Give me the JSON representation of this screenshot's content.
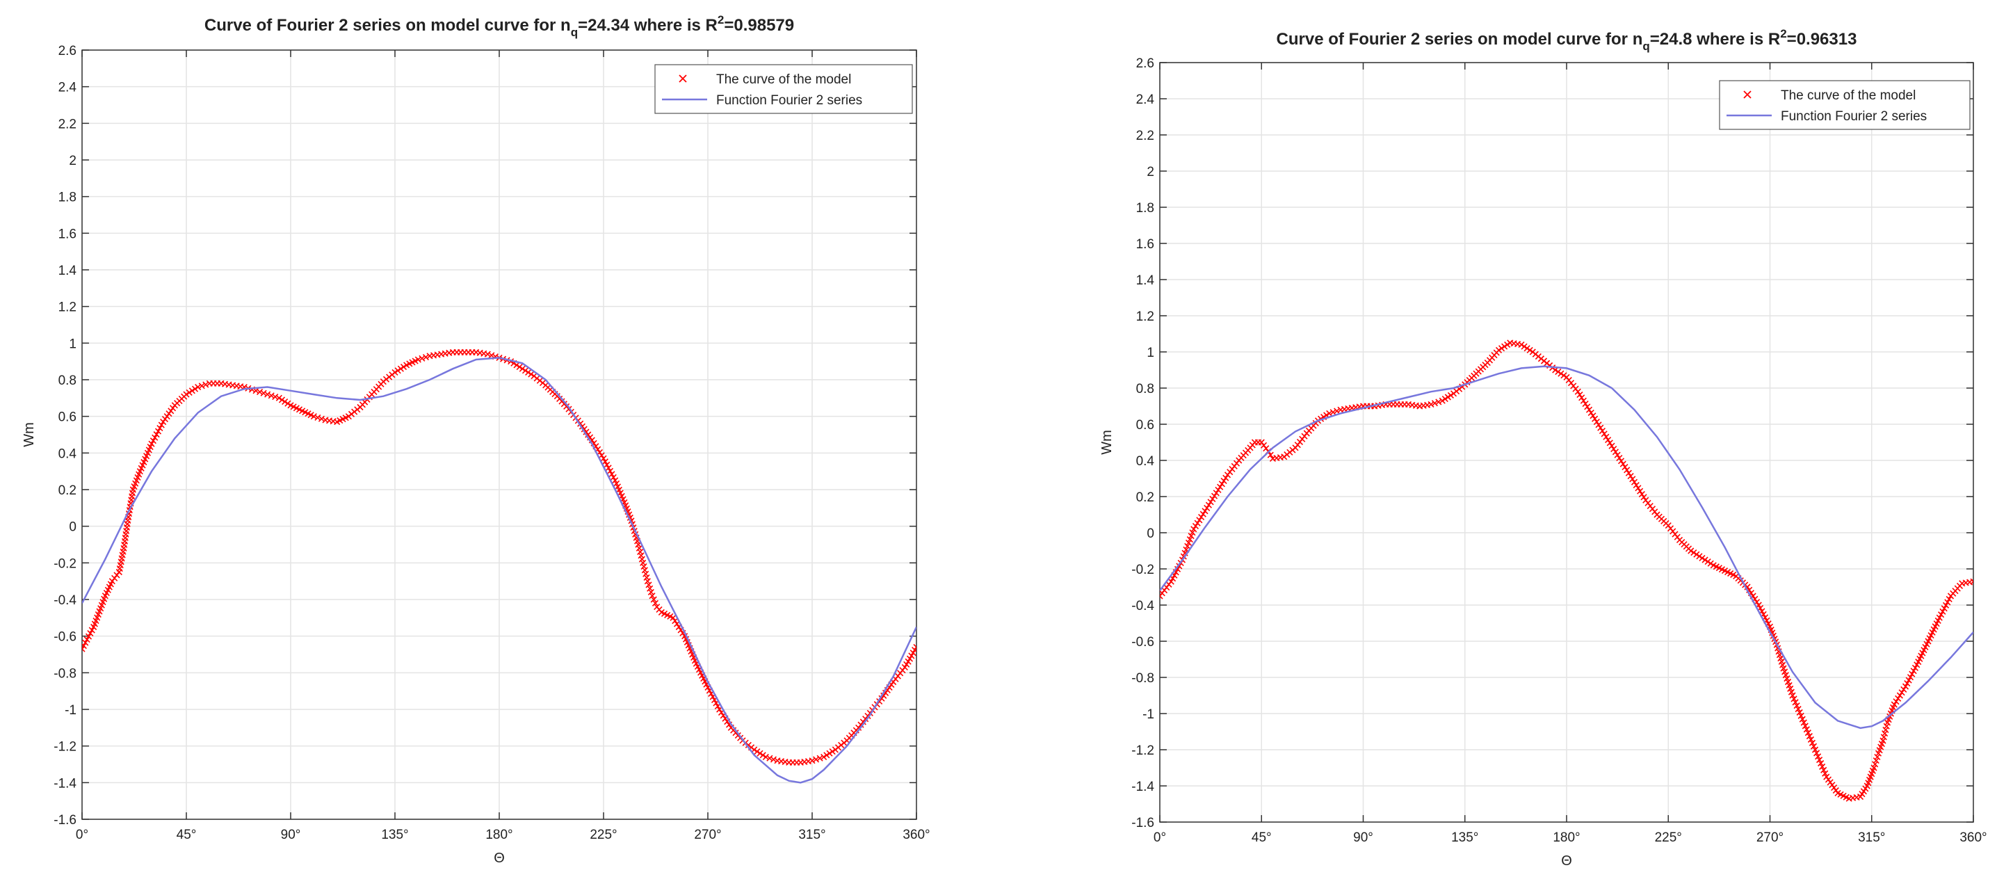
{
  "chart_data": [
    {
      "type": "line",
      "title": "Curve of Fourier 2 series on model curve for n",
      "title_sub": "q",
      "title_mid": "=24.34 where is R",
      "title_sup": "2",
      "title_end": "=0.98579",
      "xlabel": "Θ",
      "ylabel": "Wm",
      "xlim": [
        0,
        360
      ],
      "ylim": [
        -1.6,
        2.6
      ],
      "xticks": [
        0,
        45,
        90,
        135,
        180,
        225,
        270,
        315,
        360
      ],
      "xtick_labels": [
        "0°",
        "45°",
        "90°",
        "135°",
        "180°",
        "225°",
        "270°",
        "315°",
        "360°"
      ],
      "yticks": [
        -1.6,
        -1.4,
        -1.2,
        -1,
        -0.8,
        -0.6,
        -0.4,
        -0.2,
        0,
        0.2,
        0.4,
        0.6,
        0.8,
        1,
        1.2,
        1.4,
        1.6,
        1.8,
        2,
        2.2,
        2.4,
        2.6
      ],
      "ytick_labels": [
        "-1.6",
        "-1.4",
        "-1.2",
        "-1",
        "-0.8",
        "-0.6",
        "-0.4",
        "-0.2",
        "0",
        "0.2",
        "0.4",
        "0.6",
        "0.8",
        "1",
        "1.2",
        "1.4",
        "1.6",
        "1.8",
        "2",
        "2.2",
        "2.4",
        "2.6"
      ],
      "grid": true,
      "legend_position": "top-right",
      "colors": {
        "model": "#ff0000",
        "fourier": "#7777dd"
      },
      "series": [
        {
          "name": "The curve of the model",
          "marker": "x",
          "x": [
            0,
            5,
            10,
            13,
            16,
            18,
            20,
            22,
            25,
            30,
            35,
            40,
            45,
            50,
            55,
            60,
            65,
            70,
            75,
            80,
            85,
            90,
            95,
            100,
            105,
            110,
            115,
            120,
            125,
            130,
            135,
            140,
            145,
            150,
            155,
            160,
            165,
            170,
            175,
            180,
            185,
            190,
            195,
            200,
            205,
            210,
            215,
            220,
            225,
            230,
            234,
            237,
            240,
            242,
            244,
            246,
            248,
            250,
            255,
            260,
            265,
            270,
            275,
            280,
            285,
            290,
            295,
            300,
            305,
            310,
            315,
            320,
            325,
            330,
            335,
            340,
            345,
            350,
            355,
            360
          ],
          "y": [
            -0.67,
            -0.55,
            -0.38,
            -0.3,
            -0.25,
            -0.12,
            0.05,
            0.2,
            0.3,
            0.45,
            0.57,
            0.66,
            0.72,
            0.76,
            0.78,
            0.78,
            0.77,
            0.76,
            0.74,
            0.72,
            0.7,
            0.66,
            0.63,
            0.6,
            0.58,
            0.57,
            0.6,
            0.65,
            0.72,
            0.79,
            0.84,
            0.88,
            0.91,
            0.93,
            0.94,
            0.95,
            0.95,
            0.95,
            0.94,
            0.92,
            0.9,
            0.86,
            0.82,
            0.77,
            0.71,
            0.64,
            0.56,
            0.47,
            0.37,
            0.25,
            0.13,
            0.03,
            -0.1,
            -0.2,
            -0.3,
            -0.38,
            -0.44,
            -0.47,
            -0.5,
            -0.6,
            -0.75,
            -0.88,
            -1.0,
            -1.1,
            -1.17,
            -1.22,
            -1.26,
            -1.28,
            -1.29,
            -1.29,
            -1.28,
            -1.26,
            -1.22,
            -1.17,
            -1.1,
            -1.02,
            -0.94,
            -0.85,
            -0.77,
            -0.66
          ]
        },
        {
          "name": "Function Fourier 2 series",
          "marker": "line",
          "x": [
            0,
            10,
            20,
            30,
            40,
            50,
            60,
            70,
            80,
            90,
            100,
            110,
            120,
            130,
            140,
            150,
            160,
            170,
            180,
            190,
            200,
            210,
            220,
            230,
            240,
            250,
            260,
            270,
            280,
            290,
            300,
            305,
            310,
            315,
            320,
            330,
            340,
            350,
            360
          ],
          "y": [
            -0.42,
            -0.18,
            0.08,
            0.3,
            0.48,
            0.62,
            0.71,
            0.75,
            0.76,
            0.74,
            0.72,
            0.7,
            0.69,
            0.71,
            0.75,
            0.8,
            0.86,
            0.91,
            0.92,
            0.89,
            0.8,
            0.65,
            0.45,
            0.2,
            -0.06,
            -0.33,
            -0.58,
            -0.85,
            -1.08,
            -1.25,
            -1.36,
            -1.39,
            -1.4,
            -1.38,
            -1.33,
            -1.2,
            -1.03,
            -0.82,
            -0.55
          ]
        }
      ]
    },
    {
      "type": "line",
      "title": "Curve of Fourier 2 series on model curve for n",
      "title_sub": "q",
      "title_mid": "=24.8 where is R",
      "title_sup": "2",
      "title_end": "=0.96313",
      "xlabel": "Θ",
      "ylabel": "Wm",
      "xlim": [
        0,
        360
      ],
      "ylim": [
        -1.6,
        2.6
      ],
      "xticks": [
        0,
        45,
        90,
        135,
        180,
        225,
        270,
        315,
        360
      ],
      "xtick_labels": [
        "0°",
        "45°",
        "90°",
        "135°",
        "180°",
        "225°",
        "270°",
        "315°",
        "360°"
      ],
      "yticks": [
        -1.6,
        -1.4,
        -1.2,
        -1,
        -0.8,
        -0.6,
        -0.4,
        -0.2,
        0,
        0.2,
        0.4,
        0.6,
        0.8,
        1,
        1.2,
        1.4,
        1.6,
        1.8,
        2,
        2.2,
        2.4,
        2.6
      ],
      "ytick_labels": [
        "-1.6",
        "-1.4",
        "-1.2",
        "-1",
        "-0.8",
        "-0.6",
        "-0.4",
        "-0.2",
        "0",
        "0.2",
        "0.4",
        "0.6",
        "0.8",
        "1",
        "1.2",
        "1.4",
        "1.6",
        "1.8",
        "2",
        "2.2",
        "2.4",
        "2.6"
      ],
      "grid": true,
      "legend_position": "top-right",
      "colors": {
        "model": "#ff0000",
        "fourier": "#7777dd"
      },
      "series": [
        {
          "name": "The curve of the model",
          "marker": "x",
          "x": [
            0,
            5,
            10,
            15,
            20,
            25,
            30,
            35,
            40,
            42,
            45,
            48,
            50,
            55,
            60,
            65,
            70,
            75,
            80,
            85,
            90,
            95,
            100,
            105,
            110,
            115,
            120,
            125,
            130,
            135,
            140,
            145,
            150,
            155,
            160,
            165,
            170,
            175,
            180,
            185,
            190,
            195,
            200,
            205,
            210,
            215,
            220,
            225,
            230,
            235,
            240,
            245,
            250,
            255,
            260,
            265,
            270,
            273,
            276,
            280,
            285,
            290,
            295,
            300,
            305,
            310,
            313,
            316,
            318,
            320,
            322,
            325,
            330,
            335,
            340,
            345,
            350,
            355,
            360
          ],
          "y": [
            -0.35,
            -0.27,
            -0.15,
            0.02,
            0.12,
            0.22,
            0.32,
            0.4,
            0.47,
            0.5,
            0.5,
            0.45,
            0.41,
            0.42,
            0.47,
            0.55,
            0.62,
            0.66,
            0.68,
            0.69,
            0.7,
            0.7,
            0.71,
            0.71,
            0.71,
            0.7,
            0.71,
            0.73,
            0.77,
            0.82,
            0.88,
            0.94,
            1.01,
            1.05,
            1.04,
            1.0,
            0.95,
            0.9,
            0.86,
            0.78,
            0.68,
            0.58,
            0.48,
            0.38,
            0.28,
            0.18,
            0.1,
            0.04,
            -0.04,
            -0.1,
            -0.14,
            -0.18,
            -0.21,
            -0.24,
            -0.3,
            -0.4,
            -0.52,
            -0.62,
            -0.75,
            -0.9,
            -1.05,
            -1.2,
            -1.35,
            -1.44,
            -1.47,
            -1.46,
            -1.4,
            -1.3,
            -1.22,
            -1.15,
            -1.05,
            -0.95,
            -0.85,
            -0.73,
            -0.6,
            -0.47,
            -0.35,
            -0.28,
            -0.27
          ]
        },
        {
          "name": "Function Fourier 2 series",
          "marker": "line",
          "x": [
            0,
            10,
            20,
            30,
            40,
            50,
            60,
            70,
            80,
            90,
            100,
            110,
            120,
            130,
            140,
            150,
            160,
            170,
            180,
            190,
            200,
            210,
            220,
            230,
            240,
            250,
            260,
            270,
            280,
            290,
            300,
            310,
            315,
            320,
            330,
            340,
            350,
            360
          ],
          "y": [
            -0.32,
            -0.15,
            0.03,
            0.2,
            0.35,
            0.47,
            0.56,
            0.62,
            0.66,
            0.69,
            0.72,
            0.75,
            0.78,
            0.8,
            0.84,
            0.88,
            0.91,
            0.92,
            0.91,
            0.87,
            0.8,
            0.68,
            0.53,
            0.35,
            0.14,
            -0.08,
            -0.32,
            -0.55,
            -0.77,
            -0.94,
            -1.04,
            -1.08,
            -1.07,
            -1.04,
            -0.94,
            -0.82,
            -0.69,
            -0.55
          ]
        }
      ]
    }
  ]
}
